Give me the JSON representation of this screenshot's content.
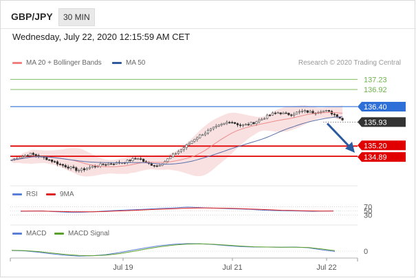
{
  "header": {
    "pair": "GBP/JPY",
    "timeframe": "30 MIN"
  },
  "timestamp": "Wednesday, July 22, 2020 12:15:59 AM CET",
  "legend_main": [
    {
      "label": "MA 20 + Bollinger Bands",
      "color": "#f08080"
    },
    {
      "label": "MA 50",
      "color": "#2e5aa0"
    }
  ],
  "credit": "Research © 2020 Trading Central",
  "legend_rsi": [
    {
      "label": "RSI",
      "color": "#5b7fd6"
    },
    {
      "label": "9MA",
      "color": "#e02020"
    }
  ],
  "legend_macd": [
    {
      "label": "MACD",
      "color": "#5b7fd6"
    },
    {
      "label": "MACD Signal",
      "color": "#5aa02c"
    }
  ],
  "colors": {
    "support": "#e00000",
    "ma50_level": "#2e6fd8",
    "resistance": "#6db34a",
    "last": "#333333"
  },
  "chart_data": {
    "type": "candlestick",
    "y_range": [
      134.16,
      137.55
    ],
    "x_ticks": [
      "Jul 19",
      "Jul 21",
      "Jul 22"
    ],
    "levels": [
      {
        "label": "137.23",
        "value": 137.23,
        "kind": "resistance"
      },
      {
        "label": "136.92",
        "value": 136.92,
        "kind": "resistance"
      },
      {
        "label": "136.40",
        "value": 136.4,
        "kind": "ma50"
      },
      {
        "label": "135.93",
        "value": 135.93,
        "kind": "last"
      },
      {
        "label": "135.20",
        "value": 135.2,
        "kind": "support"
      },
      {
        "label": "134.89",
        "value": 134.89,
        "kind": "support"
      }
    ],
    "price_path": [
      134.78,
      134.84,
      134.9,
      134.96,
      134.92,
      134.86,
      134.8,
      134.72,
      134.64,
      134.58,
      134.52,
      134.46,
      134.5,
      134.56,
      134.6,
      134.64,
      134.66,
      134.68,
      134.7,
      134.74,
      134.8,
      134.84,
      134.7,
      134.64,
      134.6,
      134.7,
      134.84,
      134.98,
      135.1,
      135.24,
      135.4,
      135.52,
      135.62,
      135.72,
      135.8,
      135.88,
      135.96,
      135.88,
      135.82,
      135.86,
      135.92,
      136.0,
      136.1,
      136.18,
      136.22,
      136.18,
      136.16,
      136.22,
      136.26,
      136.24,
      136.22,
      136.28,
      136.26,
      136.18,
      136.08,
      135.93
    ],
    "rsi": {
      "ticks": [
        "70",
        "50",
        "30"
      ],
      "ylim": [
        0,
        100
      ],
      "rsi": [
        48,
        49,
        50,
        47,
        45,
        43,
        44,
        46,
        49,
        52,
        54,
        56,
        58,
        61,
        63,
        65,
        68,
        66,
        64,
        62,
        60,
        59,
        57,
        54,
        52,
        51,
        50,
        49,
        48,
        49,
        50
      ],
      "ma9": [
        49,
        49,
        49,
        48,
        47,
        46,
        46,
        46,
        47,
        49,
        51,
        53,
        55,
        57,
        59,
        61,
        63,
        64,
        64,
        63,
        62,
        61,
        59,
        57,
        55,
        53,
        52,
        51,
        50,
        49,
        49
      ]
    },
    "macd": {
      "ticks": [
        "0"
      ],
      "ylim": [
        -1,
        1
      ],
      "macd": [
        0.05,
        0.02,
        -0.08,
        -0.2,
        -0.3,
        -0.36,
        -0.33,
        -0.25,
        -0.1,
        0.08,
        0.25,
        0.4,
        0.5,
        0.55,
        0.54,
        0.48,
        0.4,
        0.33,
        0.3,
        0.3,
        0.28,
        0.3,
        0.25,
        0.1,
        -0.02
      ],
      "signal": [
        0.06,
        0.04,
        -0.03,
        -0.14,
        -0.24,
        -0.31,
        -0.33,
        -0.29,
        -0.18,
        -0.02,
        0.16,
        0.32,
        0.44,
        0.51,
        0.53,
        0.5,
        0.44,
        0.37,
        0.32,
        0.3,
        0.29,
        0.29,
        0.27,
        0.16,
        0.04
      ]
    }
  }
}
